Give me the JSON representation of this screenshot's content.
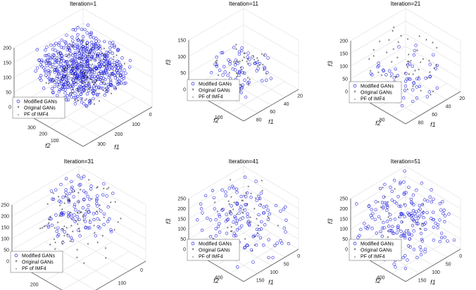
{
  "legend": [
    "Modified GANs",
    "Original GANs",
    "PF of IMF4"
  ],
  "colors": {
    "modified": "#2222dd",
    "original": "#333333",
    "pf": "#000000",
    "grid": "#dedede",
    "axis": "#555555"
  },
  "chart_data": [
    {
      "type": "scatter",
      "title": "Iteration=1",
      "xlabel": "f1",
      "ylabel": "f2",
      "zlabel": "f3",
      "xticks": [
        "0",
        "100",
        "200",
        "300"
      ],
      "yticks": [
        "300",
        "200",
        "100"
      ],
      "zticks": [
        "0",
        "50",
        "100",
        "150",
        "200"
      ],
      "xlim": [
        0,
        300
      ],
      "ylim": [
        0,
        300
      ],
      "zlim": [
        0,
        200
      ],
      "series": [
        {
          "name": "Modified GANs",
          "marker": "circle",
          "count": 600,
          "f1_range": [
            40,
            270
          ],
          "f2_range": [
            40,
            270
          ],
          "f3_range": [
            70,
            190
          ]
        },
        {
          "name": "Original GANs",
          "marker": "star",
          "count": 150,
          "f1_range": [
            60,
            260
          ],
          "f2_range": [
            60,
            260
          ],
          "f3_range": [
            60,
            170
          ]
        }
      ]
    },
    {
      "type": "scatter",
      "title": "Iteration=11",
      "xlabel": "f1",
      "ylabel": "f2",
      "zlabel": "f3",
      "xticks": [
        "20",
        "40",
        "60",
        "80"
      ],
      "yticks": [
        "100"
      ],
      "zticks": [
        "0",
        "50",
        "100",
        "150"
      ],
      "xlim": [
        0,
        90
      ],
      "ylim": [
        0,
        100
      ],
      "zlim": [
        0,
        150
      ],
      "series": [
        {
          "name": "Modified GANs",
          "marker": "circle",
          "count": 70,
          "f1_range": [
            20,
            80
          ],
          "f2_range": [
            20,
            80
          ],
          "f3_range": [
            20,
            100
          ]
        },
        {
          "name": "Original GANs",
          "marker": "star",
          "count": 45,
          "f1_range": [
            20,
            80
          ],
          "f2_range": [
            20,
            80
          ],
          "f3_range": [
            30,
            130
          ]
        }
      ]
    },
    {
      "type": "scatter",
      "title": "Iteration=21",
      "xlabel": "f1",
      "ylabel": "f2",
      "zlabel": "f3",
      "xticks": [
        "20",
        "40",
        "60",
        "80"
      ],
      "yticks": [
        "80"
      ],
      "zticks": [
        "0",
        "50",
        "100",
        "150",
        "200"
      ],
      "xlim": [
        0,
        90
      ],
      "ylim": [
        0,
        90
      ],
      "zlim": [
        0,
        200
      ],
      "series": [
        {
          "name": "Modified GANs",
          "marker": "circle",
          "count": 55,
          "f1_range": [
            10,
            80
          ],
          "f2_range": [
            10,
            80
          ],
          "f3_range": [
            10,
            120
          ]
        },
        {
          "name": "Original GANs",
          "marker": "star",
          "count": 50,
          "f1_range": [
            5,
            80
          ],
          "f2_range": [
            5,
            80
          ],
          "f3_range": [
            5,
            190
          ]
        }
      ]
    },
    {
      "type": "scatter",
      "title": "Iteration=31",
      "xlabel": "f1",
      "ylabel": "f2",
      "zlabel": "f3",
      "xticks": [
        "0",
        "100",
        "200"
      ],
      "yticks": [
        "200",
        "150"
      ],
      "zticks": [
        "0",
        "50",
        "100",
        "150",
        "200",
        "250"
      ],
      "xlim": [
        0,
        200
      ],
      "ylim": [
        0,
        200
      ],
      "zlim": [
        0,
        250
      ],
      "series": [
        {
          "name": "Modified GANs",
          "marker": "circle",
          "count": 110,
          "f1_range": [
            0,
            120
          ],
          "f2_range": [
            0,
            120
          ],
          "f3_range": [
            50,
            250
          ]
        },
        {
          "name": "Original GANs",
          "marker": "star",
          "count": 80,
          "f1_range": [
            0,
            150
          ],
          "f2_range": [
            0,
            150
          ],
          "f3_range": [
            0,
            250
          ]
        }
      ]
    },
    {
      "type": "scatter",
      "title": "Iteration=41",
      "xlabel": "f1",
      "ylabel": "f2",
      "zlabel": "f3",
      "xticks": [
        "0",
        "50",
        "100",
        "150"
      ],
      "yticks": [
        "400"
      ],
      "zticks": [
        "0",
        "50",
        "100",
        "150",
        "200",
        "250"
      ],
      "xlim": [
        0,
        150
      ],
      "ylim": [
        0,
        400
      ],
      "zlim": [
        0,
        250
      ],
      "series": [
        {
          "name": "Modified GANs",
          "marker": "circle",
          "count": 130,
          "f1_range": [
            0,
            150
          ],
          "f2_range": [
            0,
            400
          ],
          "f3_range": [
            0,
            250
          ]
        },
        {
          "name": "Original GANs",
          "marker": "star",
          "count": 45,
          "f1_range": [
            0,
            100
          ],
          "f2_range": [
            0,
            300
          ],
          "f3_range": [
            0,
            250
          ]
        }
      ]
    },
    {
      "type": "scatter",
      "title": "Iteration=51",
      "xlabel": "f1",
      "ylabel": "f2",
      "zlabel": "f3",
      "xticks": [
        "0",
        "50",
        "100",
        "150"
      ],
      "yticks": [
        "400"
      ],
      "zticks": [
        "0",
        "50",
        "100",
        "150",
        "200",
        "250"
      ],
      "xlim": [
        0,
        150
      ],
      "ylim": [
        0,
        400
      ],
      "zlim": [
        0,
        250
      ],
      "series": [
        {
          "name": "Modified GANs",
          "marker": "circle",
          "count": 190,
          "f1_range": [
            0,
            150
          ],
          "f2_range": [
            0,
            400
          ],
          "f3_range": [
            0,
            250
          ]
        },
        {
          "name": "Original GANs",
          "marker": "star",
          "count": 20,
          "f1_range": [
            0,
            100
          ],
          "f2_range": [
            0,
            300
          ],
          "f3_range": [
            0,
            250
          ]
        }
      ]
    }
  ]
}
